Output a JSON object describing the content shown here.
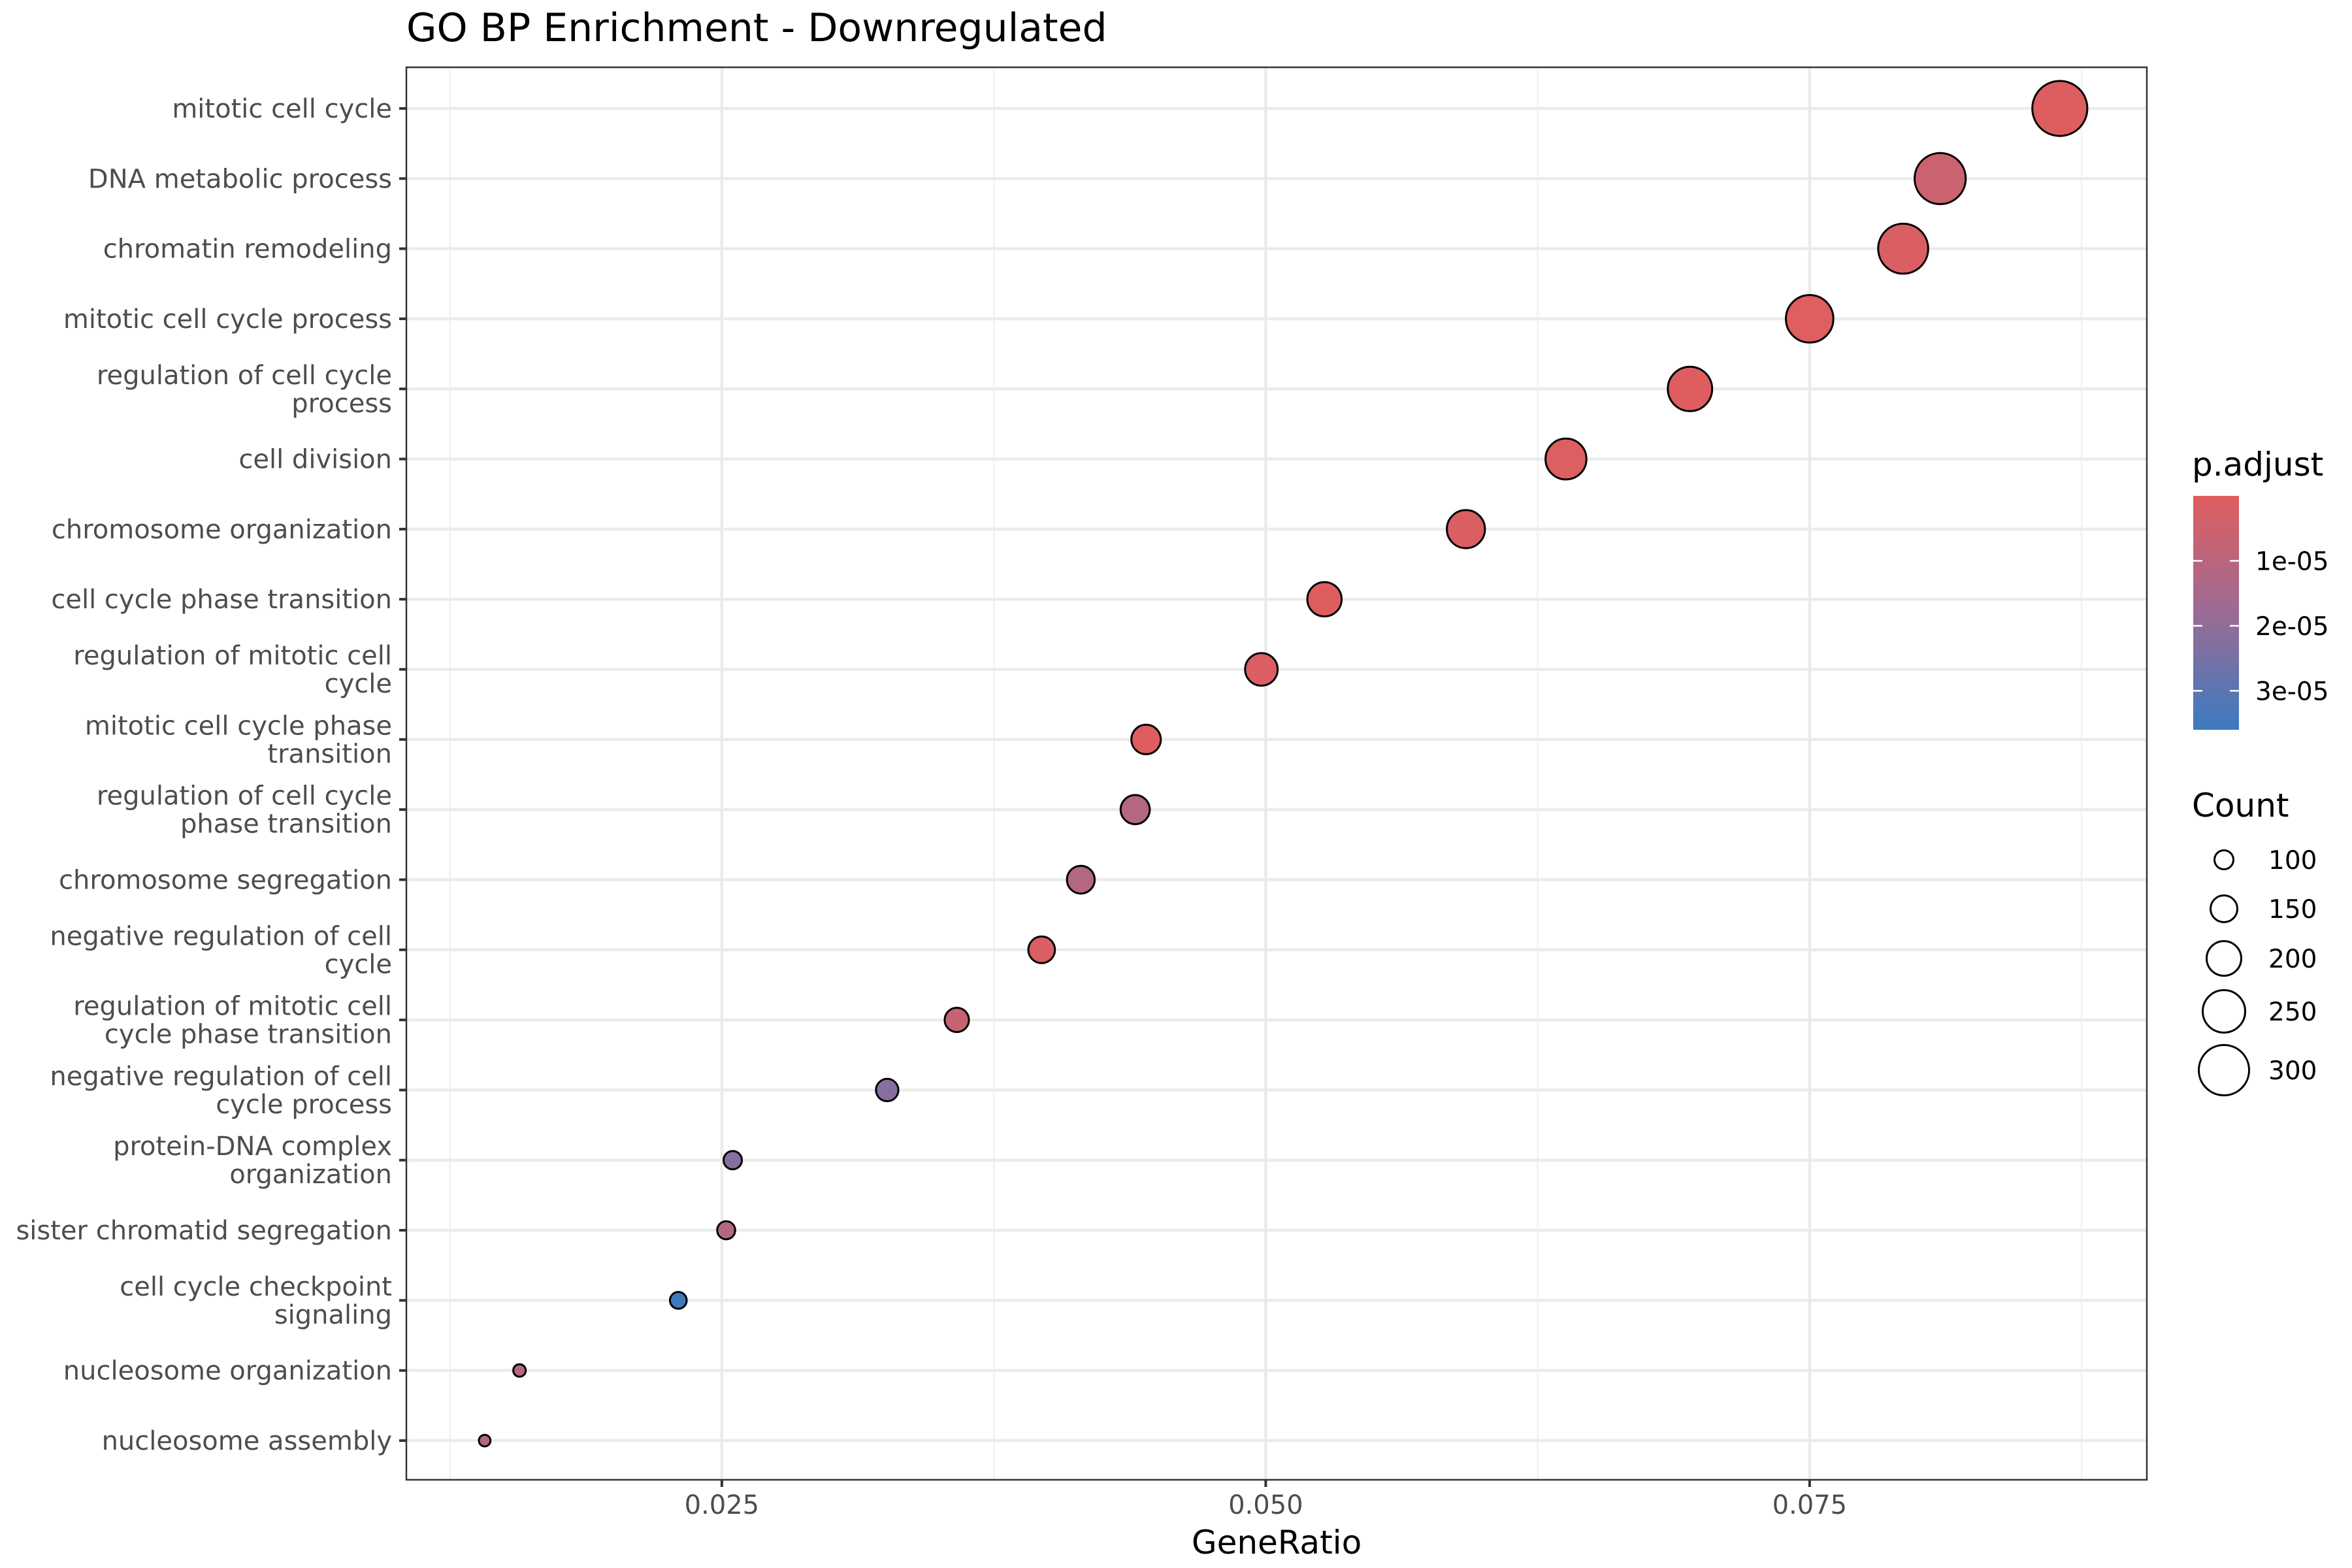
{
  "chart_data": {
    "type": "scatter",
    "title": "GO BP Enrichment - Downregulated",
    "xlabel": "GeneRatio",
    "ylabel": "",
    "xlim": [
      0.0105,
      0.0905
    ],
    "x_ticks": [
      {
        "value": 0.025,
        "label": "0.025"
      },
      {
        "value": 0.05,
        "label": "0.050"
      },
      {
        "value": 0.075,
        "label": "0.075"
      }
    ],
    "grid": true,
    "categories": [
      {
        "lines": [
          "mitotic cell cycle"
        ],
        "gene_ratio": 0.0865,
        "count": 330,
        "p_adjust": 4e-07
      },
      {
        "lines": [
          "DNA metabolic process"
        ],
        "gene_ratio": 0.081,
        "count": 305,
        "p_adjust": 5.5e-06
      },
      {
        "lines": [
          "chromatin remodeling"
        ],
        "gene_ratio": 0.0793,
        "count": 298,
        "p_adjust": 1.5e-06
      },
      {
        "lines": [
          "mitotic cell cycle process"
        ],
        "gene_ratio": 0.075,
        "count": 282,
        "p_adjust": 3e-07
      },
      {
        "lines": [
          "regulation of cell cycle",
          "process"
        ],
        "gene_ratio": 0.0695,
        "count": 262,
        "p_adjust": 4e-07
      },
      {
        "lines": [
          "cell division"
        ],
        "gene_ratio": 0.0638,
        "count": 240,
        "p_adjust": 1e-06
      },
      {
        "lines": [
          "chromosome organization"
        ],
        "gene_ratio": 0.0592,
        "count": 222,
        "p_adjust": 1.5e-06
      },
      {
        "lines": [
          "cell cycle phase transition"
        ],
        "gene_ratio": 0.0527,
        "count": 198,
        "p_adjust": 5e-07
      },
      {
        "lines": [
          "regulation of mitotic cell",
          "cycle"
        ],
        "gene_ratio": 0.0498,
        "count": 187,
        "p_adjust": 1.2e-06
      },
      {
        "lines": [
          "mitotic cell cycle phase",
          "transition"
        ],
        "gene_ratio": 0.0445,
        "count": 167,
        "p_adjust": 5e-07
      },
      {
        "lines": [
          "regulation of cell cycle",
          "phase transition"
        ],
        "gene_ratio": 0.044,
        "count": 165,
        "p_adjust": 1.15e-05
      },
      {
        "lines": [
          "chromosome segregation"
        ],
        "gene_ratio": 0.0415,
        "count": 156,
        "p_adjust": 1.2e-05
      },
      {
        "lines": [
          "negative regulation of cell",
          "cycle"
        ],
        "gene_ratio": 0.0397,
        "count": 149,
        "p_adjust": 1.5e-06
      },
      {
        "lines": [
          "regulation of mitotic cell",
          "cycle phase transition"
        ],
        "gene_ratio": 0.0358,
        "count": 134,
        "p_adjust": 7e-06
      },
      {
        "lines": [
          "negative regulation of cell",
          "cycle process"
        ],
        "gene_ratio": 0.0326,
        "count": 122,
        "p_adjust": 2.2e-05
      },
      {
        "lines": [
          "protein-DNA complex",
          "organization"
        ],
        "gene_ratio": 0.0255,
        "count": 96,
        "p_adjust": 2.2e-05
      },
      {
        "lines": [
          "sister chromatid segregation"
        ],
        "gene_ratio": 0.0252,
        "count": 94,
        "p_adjust": 1.2e-05
      },
      {
        "lines": [
          "cell cycle checkpoint",
          "signaling"
        ],
        "gene_ratio": 0.023,
        "count": 86,
        "p_adjust": 3.5e-05
      },
      {
        "lines": [
          "nucleosome organization"
        ],
        "gene_ratio": 0.0157,
        "count": 59,
        "p_adjust": 1.2e-05
      },
      {
        "lines": [
          "nucleosome assembly"
        ],
        "gene_ratio": 0.0141,
        "count": 53,
        "p_adjust": 1.1e-05
      }
    ],
    "color_legend": {
      "title": "p.adjust",
      "low_color": "#e05e5e",
      "mid_color": "#9c6b95",
      "high_color": "#3b7bbf",
      "range": [
        0,
        3.6e-05
      ],
      "ticks": [
        {
          "value": 1e-05,
          "label": "1e-05"
        },
        {
          "value": 2e-05,
          "label": "2e-05"
        },
        {
          "value": 3e-05,
          "label": "3e-05"
        }
      ]
    },
    "size_legend": {
      "title": "Count",
      "entries": [
        {
          "value": 100,
          "label": "100"
        },
        {
          "value": 150,
          "label": "150"
        },
        {
          "value": 200,
          "label": "200"
        },
        {
          "value": 250,
          "label": "250"
        },
        {
          "value": 300,
          "label": "300"
        }
      ]
    },
    "point_stroke_color": "#000000"
  }
}
